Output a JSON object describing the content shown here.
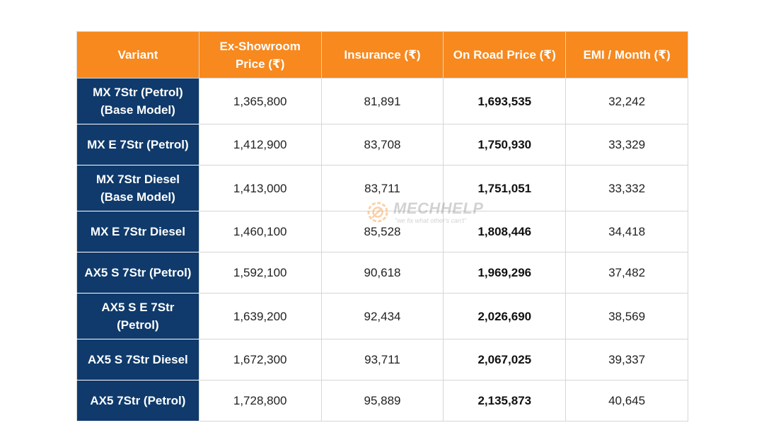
{
  "table": {
    "headers": [
      "Variant",
      "Ex-Showroom Price (₹)",
      "Insurance (₹)",
      "On Road Price (₹)",
      "EMI / Month (₹)"
    ],
    "rows": [
      {
        "variant": "MX 7Str (Petrol) (Base Model)",
        "ex_showroom": "1,365,800",
        "insurance": "81,891",
        "on_road": "1,693,535",
        "emi": "32,242"
      },
      {
        "variant": "MX E 7Str (Petrol)",
        "ex_showroom": "1,412,900",
        "insurance": "83,708",
        "on_road": "1,750,930",
        "emi": "33,329"
      },
      {
        "variant": "MX 7Str Diesel (Base Model)",
        "ex_showroom": "1,413,000",
        "insurance": "83,711",
        "on_road": "1,751,051",
        "emi": "33,332"
      },
      {
        "variant": "MX E 7Str Diesel",
        "ex_showroom": "1,460,100",
        "insurance": "85,528",
        "on_road": "1,808,446",
        "emi": "34,418"
      },
      {
        "variant": "AX5 S 7Str (Petrol)",
        "ex_showroom": "1,592,100",
        "insurance": "90,618",
        "on_road": "1,969,296",
        "emi": "37,482"
      },
      {
        "variant": "AX5 S E 7Str (Petrol)",
        "ex_showroom": "1,639,200",
        "insurance": "92,434",
        "on_road": "2,026,690",
        "emi": "38,569"
      },
      {
        "variant": "AX5 S 7Str Diesel",
        "ex_showroom": "1,672,300",
        "insurance": "93,711",
        "on_road": "2,067,025",
        "emi": "39,337"
      },
      {
        "variant": "AX5 7Str (Petrol)",
        "ex_showroom": "1,728,800",
        "insurance": "95,889",
        "on_road": "2,135,873",
        "emi": "40,645"
      }
    ]
  },
  "watermark": {
    "brand": "MECHHELP",
    "tagline": "\"we fix what other's can't\"",
    "icon": "gear-wrench-logo-icon"
  },
  "colors": {
    "header_bg": "#f7891f",
    "variant_bg": "#0f3a6b",
    "border": "#d6d6d6"
  }
}
